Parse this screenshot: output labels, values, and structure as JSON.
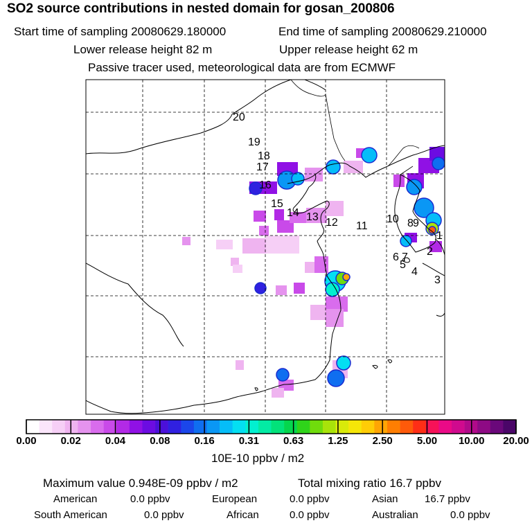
{
  "header": {
    "title": "SO2 source contributions in nested domain for gosan_200806",
    "start_label": "Start time of sampling 20080629.180000",
    "end_label": "End time of sampling 20080629.210000",
    "lower_release": "Lower release height   82 m",
    "upper_release": "Upper release height   62 m",
    "tracer_note": "Passive tracer used, meteorological data are from ECMWF"
  },
  "chart_data": {
    "type": "heatmap",
    "title": "SO2 source contributions in nested domain for gosan_200806",
    "colorbar": {
      "unit_label": "10E-10 ppbv / m2",
      "tick_labels": [
        "0.00",
        "0.02",
        "0.04",
        "0.08",
        "0.16",
        "0.31",
        "0.63",
        "1.25",
        "2.50",
        "5.00",
        "10.00",
        "20.00"
      ],
      "colors": [
        "#ffffff",
        "#fbe6fb",
        "#f6cff6",
        "#efb4f0",
        "#e593ee",
        "#d96ced",
        "#c94ae9",
        "#b22ae6",
        "#9011e5",
        "#6c0ce2",
        "#4b10d9",
        "#3020e0",
        "#1b46ea",
        "#0f6ef0",
        "#0a97f5",
        "#05bdf8",
        "#04dff2",
        "#02f0d0",
        "#03eba4",
        "#02e27a",
        "#05d64d",
        "#2fd41a",
        "#70dc0c",
        "#a8e30a",
        "#d9ea0a",
        "#f6e608",
        "#ffcc06",
        "#ffa504",
        "#ff7e02",
        "#ff5a0a",
        "#ff2e16",
        "#f71258",
        "#ea0a87",
        "#d00a8e",
        "#b10a8a",
        "#8e0a84",
        "#6a087a",
        "#4a0668"
      ]
    },
    "trajectory_labels": [
      {
        "label": "1"
      },
      {
        "label": "2"
      },
      {
        "label": "3"
      },
      {
        "label": "4"
      },
      {
        "label": "5"
      },
      {
        "label": "6"
      },
      {
        "label": "7"
      },
      {
        "label": "8"
      },
      {
        "label": "9"
      },
      {
        "label": "10"
      },
      {
        "label": "11"
      },
      {
        "label": "12"
      },
      {
        "label": "13"
      },
      {
        "label": "14"
      },
      {
        "label": "15"
      },
      {
        "label": "16"
      },
      {
        "label": "17"
      },
      {
        "label": "18"
      },
      {
        "label": "19"
      },
      {
        "label": "20"
      }
    ],
    "maximum_value": "Maximum value  0.948E-09 ppbv / m2",
    "total_mixing_ratio": "Total mixing ratio       16.7 ppbv"
  },
  "regions": {
    "american_label": "American",
    "american_value": "0.0 ppbv",
    "european_label": "European",
    "european_value": "0.0 ppbv",
    "asian_label": "Asian",
    "asian_value": "16.7 ppbv",
    "south_american_label": "South American",
    "south_american_value": "0.0 ppbv",
    "african_label": "African",
    "african_value": "0.0 ppbv",
    "australian_label": "Australian",
    "australian_value": "0.0 ppbv"
  }
}
